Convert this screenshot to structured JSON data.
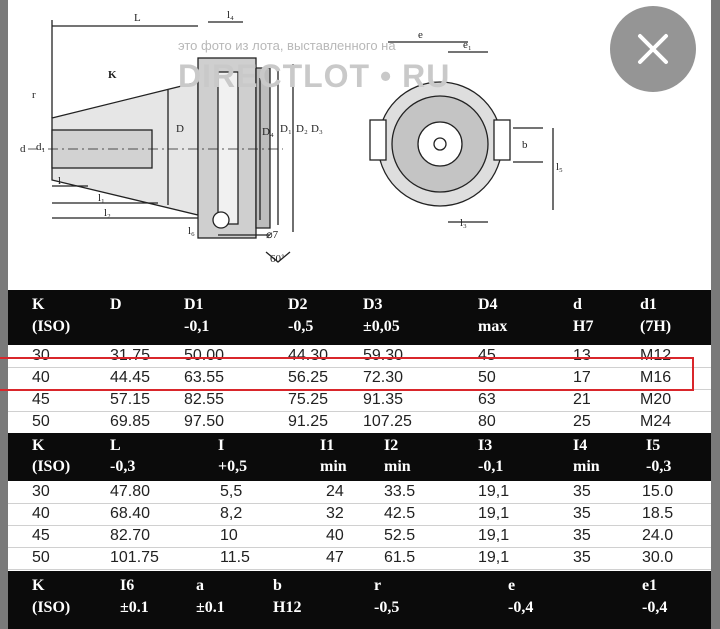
{
  "watermark": {
    "note": "это фото из лота, выставленного на",
    "logo": "DIRECTLOT • RU"
  },
  "drawing_labels": {
    "L": "L",
    "l4": "l₄",
    "K": "K",
    "r": "r",
    "d": "d",
    "d1": "d₁",
    "D": "D",
    "D4": "D₄",
    "D1": "D₁",
    "D2": "D₂",
    "D3": "D₃",
    "l": "l",
    "l1": "l₁",
    "l2": "l₂",
    "l6": "l₆",
    "diam7": "⌀7",
    "angle": "60˚",
    "e": "e",
    "e1": "e₁",
    "b": "b",
    "l5": "l₅",
    "l3": "l₃"
  },
  "table1": {
    "headers": [
      [
        "K",
        "(ISO)"
      ],
      [
        "D",
        ""
      ],
      [
        "D1",
        "-0,1"
      ],
      [
        "D2",
        "-0,5"
      ],
      [
        "D3",
        "±0,05"
      ],
      [
        "D4",
        "max"
      ],
      [
        "d",
        "H7"
      ],
      [
        "d1",
        "(7H)"
      ]
    ],
    "rows": [
      [
        "30",
        "31.75",
        "50.00",
        "44.30",
        "59.30",
        "45",
        "13",
        "M12"
      ],
      [
        "40",
        "44.45",
        "63.55",
        "56.25",
        "72.30",
        "50",
        "17",
        "M16"
      ],
      [
        "45",
        "57.15",
        "82.55",
        "75.25",
        "91.35",
        "63",
        "21",
        "M20"
      ],
      [
        "50",
        "69.85",
        "97.50",
        "91.25",
        "107.25",
        "80",
        "25",
        "M24"
      ]
    ]
  },
  "table2": {
    "headers": [
      [
        "K",
        "(ISO)"
      ],
      [
        "L",
        "-0,3"
      ],
      [
        "I",
        "+0,5"
      ],
      [
        "I1",
        "min"
      ],
      [
        "I2",
        "min"
      ],
      [
        "I3",
        "-0,1"
      ],
      [
        "I4",
        "min"
      ],
      [
        "I5",
        "-0,3"
      ]
    ],
    "rows": [
      [
        "30",
        "47.80",
        "5,5",
        "24",
        "33.5",
        "19,1",
        "35",
        "15.0"
      ],
      [
        "40",
        "68.40",
        "8,2",
        "32",
        "42.5",
        "19,1",
        "35",
        "18.5"
      ],
      [
        "45",
        "82.70",
        "10",
        "40",
        "52.5",
        "19,1",
        "35",
        "24.0"
      ],
      [
        "50",
        "101.75",
        "11.5",
        "47",
        "61.5",
        "19,1",
        "35",
        "30.0"
      ]
    ]
  },
  "table3": {
    "headers": [
      [
        "K",
        "(ISO)"
      ],
      [
        "I6",
        "±0.1"
      ],
      [
        "a",
        "±0.1"
      ],
      [
        "b",
        "H12"
      ],
      [
        "r",
        "-0,5"
      ],
      [
        "e",
        "-0,4"
      ],
      [
        "e1",
        "-0,4"
      ]
    ]
  },
  "highlight_color": "#d9262b",
  "close_icon": "close-icon"
}
